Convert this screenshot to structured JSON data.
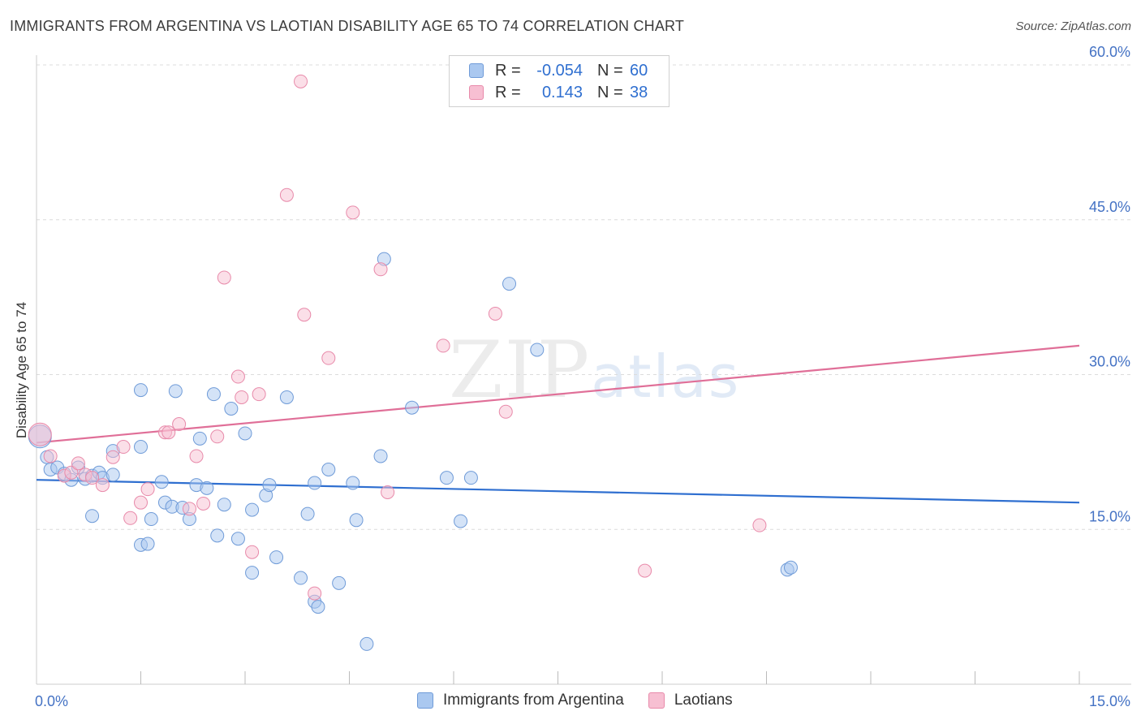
{
  "header": {
    "title": "IMMIGRANTS FROM ARGENTINA VS LAOTIAN DISABILITY AGE 65 TO 74 CORRELATION CHART",
    "source": "Source: ZipAtlas.com"
  },
  "watermark": {
    "zip": "ZIP",
    "atlas": "atlas"
  },
  "legend": {
    "rows": [
      {
        "r_label": "R =",
        "r_value": "-0.054",
        "n_label": "N =",
        "n_value": "60",
        "color": "#aac8f0",
        "border": "#6f9bd8"
      },
      {
        "r_label": "R =",
        "r_value": "0.143",
        "n_label": "N =",
        "n_value": "38",
        "color": "#f7bfd2",
        "border": "#e88aaa"
      }
    ]
  },
  "bottom_legend": {
    "items": [
      {
        "label": "Immigrants from Argentina",
        "color": "#aac8f0",
        "border": "#6f9bd8"
      },
      {
        "label": "Laotians",
        "color": "#f7bfd2",
        "border": "#e88aaa"
      }
    ]
  },
  "chart_data": {
    "type": "scatter",
    "ylabel": "Disability Age 65 to 74",
    "xlim": [
      0,
      15
    ],
    "ylim": [
      0,
      61
    ],
    "x_tick_labels": [
      {
        "value": 0,
        "label": "0.0%"
      },
      {
        "value": 15,
        "label": "15.0%"
      }
    ],
    "y_tick_labels": [
      {
        "value": 15,
        "label": "15.0%"
      },
      {
        "value": 30,
        "label": "30.0%"
      },
      {
        "value": 45,
        "label": "45.0%"
      },
      {
        "value": 60,
        "label": "60.0%"
      }
    ],
    "grid": "horizontal dashed",
    "series": [
      {
        "name": "Immigrants from Argentina",
        "color": "#aac8f0",
        "stroke": "#6f9bd8",
        "line_color": "#2f6fd0",
        "trend": [
          [
            0,
            19.8
          ],
          [
            15,
            17.6
          ]
        ],
        "points": [
          [
            0.05,
            24.0
          ],
          [
            0.15,
            22.0
          ],
          [
            0.2,
            20.8
          ],
          [
            0.3,
            21.0
          ],
          [
            0.4,
            20.4
          ],
          [
            0.5,
            19.8
          ],
          [
            0.6,
            21.0
          ],
          [
            0.7,
            19.9
          ],
          [
            0.8,
            20.2
          ],
          [
            0.9,
            20.5
          ],
          [
            0.95,
            20.0
          ],
          [
            1.1,
            20.3
          ],
          [
            0.8,
            16.3
          ],
          [
            1.1,
            22.6
          ],
          [
            1.5,
            28.5
          ],
          [
            1.5,
            23.0
          ],
          [
            1.5,
            13.5
          ],
          [
            1.6,
            13.6
          ],
          [
            1.65,
            16.0
          ],
          [
            1.8,
            19.6
          ],
          [
            1.85,
            17.6
          ],
          [
            1.95,
            17.2
          ],
          [
            2.0,
            28.4
          ],
          [
            2.1,
            17.1
          ],
          [
            2.2,
            16.0
          ],
          [
            2.3,
            19.3
          ],
          [
            2.35,
            23.8
          ],
          [
            2.45,
            19.0
          ],
          [
            2.55,
            28.1
          ],
          [
            2.6,
            14.4
          ],
          [
            2.7,
            17.4
          ],
          [
            2.8,
            26.7
          ],
          [
            2.9,
            14.1
          ],
          [
            3.0,
            24.3
          ],
          [
            3.1,
            10.8
          ],
          [
            3.1,
            16.9
          ],
          [
            3.3,
            18.3
          ],
          [
            3.35,
            19.3
          ],
          [
            3.45,
            12.3
          ],
          [
            3.6,
            27.8
          ],
          [
            3.8,
            10.3
          ],
          [
            3.9,
            16.5
          ],
          [
            4.0,
            8.0
          ],
          [
            4.0,
            19.5
          ],
          [
            4.05,
            7.5
          ],
          [
            4.2,
            20.8
          ],
          [
            4.35,
            9.8
          ],
          [
            4.55,
            19.5
          ],
          [
            4.6,
            15.9
          ],
          [
            4.75,
            3.9
          ],
          [
            4.95,
            22.1
          ],
          [
            5.0,
            41.2
          ],
          [
            5.4,
            26.8
          ],
          [
            5.9,
            20.0
          ],
          [
            6.1,
            15.8
          ],
          [
            6.25,
            20.0
          ],
          [
            6.8,
            38.8
          ],
          [
            7.2,
            32.4
          ],
          [
            10.8,
            11.1
          ],
          [
            10.85,
            11.3
          ]
        ]
      },
      {
        "name": "Laotians",
        "color": "#f7bfd2",
        "stroke": "#e88aaa",
        "line_color": "#e06f98",
        "trend": [
          [
            0,
            23.4
          ],
          [
            15,
            32.8
          ]
        ],
        "points": [
          [
            0.05,
            24.2
          ],
          [
            0.2,
            22.1
          ],
          [
            0.4,
            20.2
          ],
          [
            0.5,
            20.5
          ],
          [
            0.6,
            21.4
          ],
          [
            0.7,
            20.3
          ],
          [
            0.8,
            20.0
          ],
          [
            0.95,
            19.3
          ],
          [
            1.1,
            22.0
          ],
          [
            1.25,
            23.0
          ],
          [
            1.35,
            16.1
          ],
          [
            1.5,
            17.6
          ],
          [
            1.6,
            18.9
          ],
          [
            1.85,
            24.4
          ],
          [
            1.9,
            24.4
          ],
          [
            2.05,
            25.2
          ],
          [
            2.2,
            17.0
          ],
          [
            2.3,
            22.1
          ],
          [
            2.4,
            17.5
          ],
          [
            2.6,
            24.0
          ],
          [
            2.7,
            39.4
          ],
          [
            2.9,
            29.8
          ],
          [
            2.95,
            27.8
          ],
          [
            3.1,
            12.8
          ],
          [
            3.2,
            28.1
          ],
          [
            3.6,
            47.4
          ],
          [
            3.8,
            58.4
          ],
          [
            3.85,
            35.8
          ],
          [
            4.0,
            8.8
          ],
          [
            4.2,
            31.6
          ],
          [
            4.55,
            45.7
          ],
          [
            4.95,
            40.2
          ],
          [
            5.05,
            18.6
          ],
          [
            5.85,
            32.8
          ],
          [
            6.6,
            35.9
          ],
          [
            6.75,
            26.4
          ],
          [
            8.75,
            11.0
          ],
          [
            10.4,
            15.4
          ]
        ]
      }
    ]
  }
}
